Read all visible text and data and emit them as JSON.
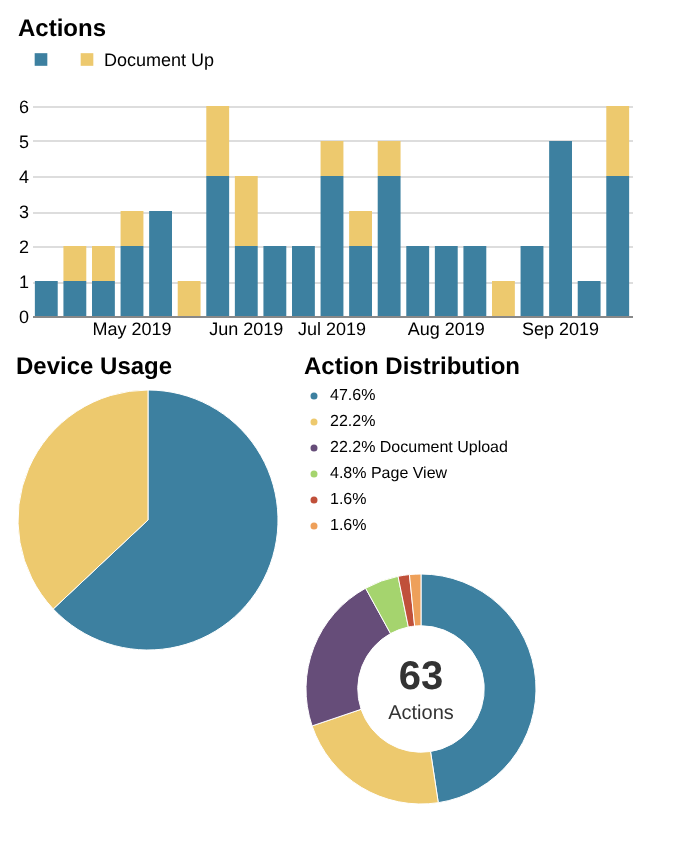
{
  "chart_data": [
    {
      "type": "bar",
      "title": "Actions",
      "stacked": true,
      "legend": "top",
      "grid": "y",
      "categories": [
        null,
        null,
        null,
        "May 2019",
        null,
        null,
        null,
        "Jun 2019",
        null,
        null,
        "Jul 2019",
        null,
        null,
        null,
        "Aug 2019",
        null,
        null,
        null,
        "Sep 2019",
        null,
        null
      ],
      "series": [
        {
          "color": "#3d80a0",
          "values": [
            1,
            1,
            1,
            2,
            3,
            0,
            4,
            2,
            2,
            2,
            4,
            2,
            4,
            2,
            2,
            2,
            0,
            2,
            5,
            1,
            4
          ]
        },
        {
          "name": "Document Up",
          "color": "#edc96e",
          "values": [
            0,
            1,
            1,
            1,
            0,
            1,
            2,
            2,
            0,
            0,
            1,
            1,
            1,
            0,
            0,
            0,
            1,
            0,
            0,
            0,
            2
          ]
        }
      ],
      "ylim": [
        0,
        6
      ],
      "yticks": [
        0,
        1,
        2,
        3,
        4,
        5,
        6
      ]
    },
    {
      "type": "pie",
      "title": "Device Usage",
      "categories": [
        null,
        null
      ],
      "values": [
        63,
        37
      ],
      "colors": [
        "#3d80a0",
        "#edc96e"
      ]
    },
    {
      "type": "donut",
      "title": "Action Distribution",
      "legend": "top",
      "categories": [
        "47.6%",
        "22.2%",
        "22.2% Document Upload",
        "4.8% Page View",
        "1.6%",
        "1.6%"
      ],
      "values": [
        47.6,
        22.2,
        22.2,
        4.8,
        1.6,
        1.6
      ],
      "colors": [
        "#3d80a0",
        "#edc96e",
        "#664d79",
        "#a5d46e",
        "#c0503a",
        "#eea05a"
      ],
      "annotations": [
        "63",
        "Actions"
      ]
    }
  ]
}
